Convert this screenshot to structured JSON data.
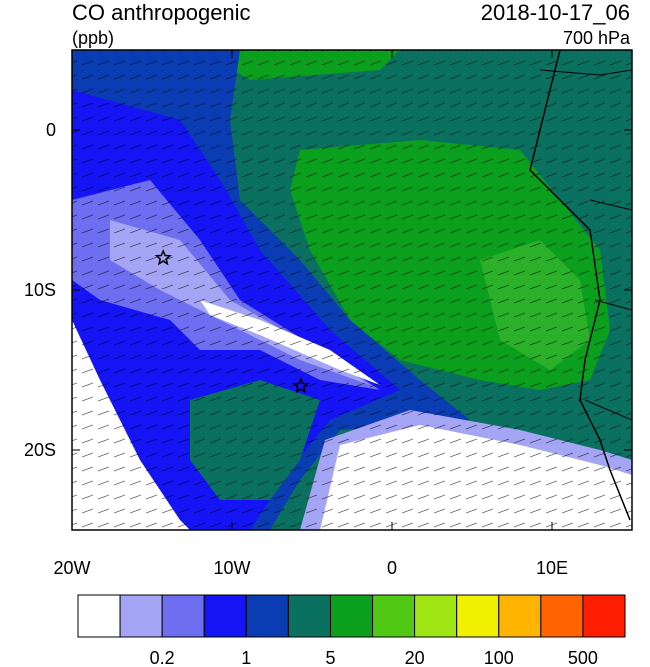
{
  "title": "CO anthropogenic",
  "units": "(ppb)",
  "time": "2018-10-17_06",
  "level": "700 hPa",
  "map": {
    "xlim": [
      -20,
      15
    ],
    "ylim": [
      -25,
      5
    ],
    "xticks": [
      {
        "value": -20,
        "label": "20W"
      },
      {
        "value": -10,
        "label": "10W"
      },
      0,
      {
        "value": 10,
        "label": "10E"
      }
    ],
    "yticks": [
      0,
      {
        "value": -10,
        "label": "10S"
      },
      {
        "value": -20,
        "label": "20S"
      }
    ],
    "markers": [
      {
        "lon": -14.3,
        "lat": -8
      },
      {
        "lon": -5.7,
        "lat": -16
      }
    ]
  },
  "colorbar": {
    "colors": [
      "#ffffff",
      "#a5a5f5",
      "#6e6ef0",
      "#1414f5",
      "#0a3cb4",
      "#0a7060",
      "#0aa01e",
      "#50c814",
      "#a0e614",
      "#f0f000",
      "#ffb400",
      "#ff6400",
      "#ff1e00"
    ],
    "labels": [
      "0.2",
      "1",
      "5",
      "20",
      "100",
      "500"
    ]
  }
}
